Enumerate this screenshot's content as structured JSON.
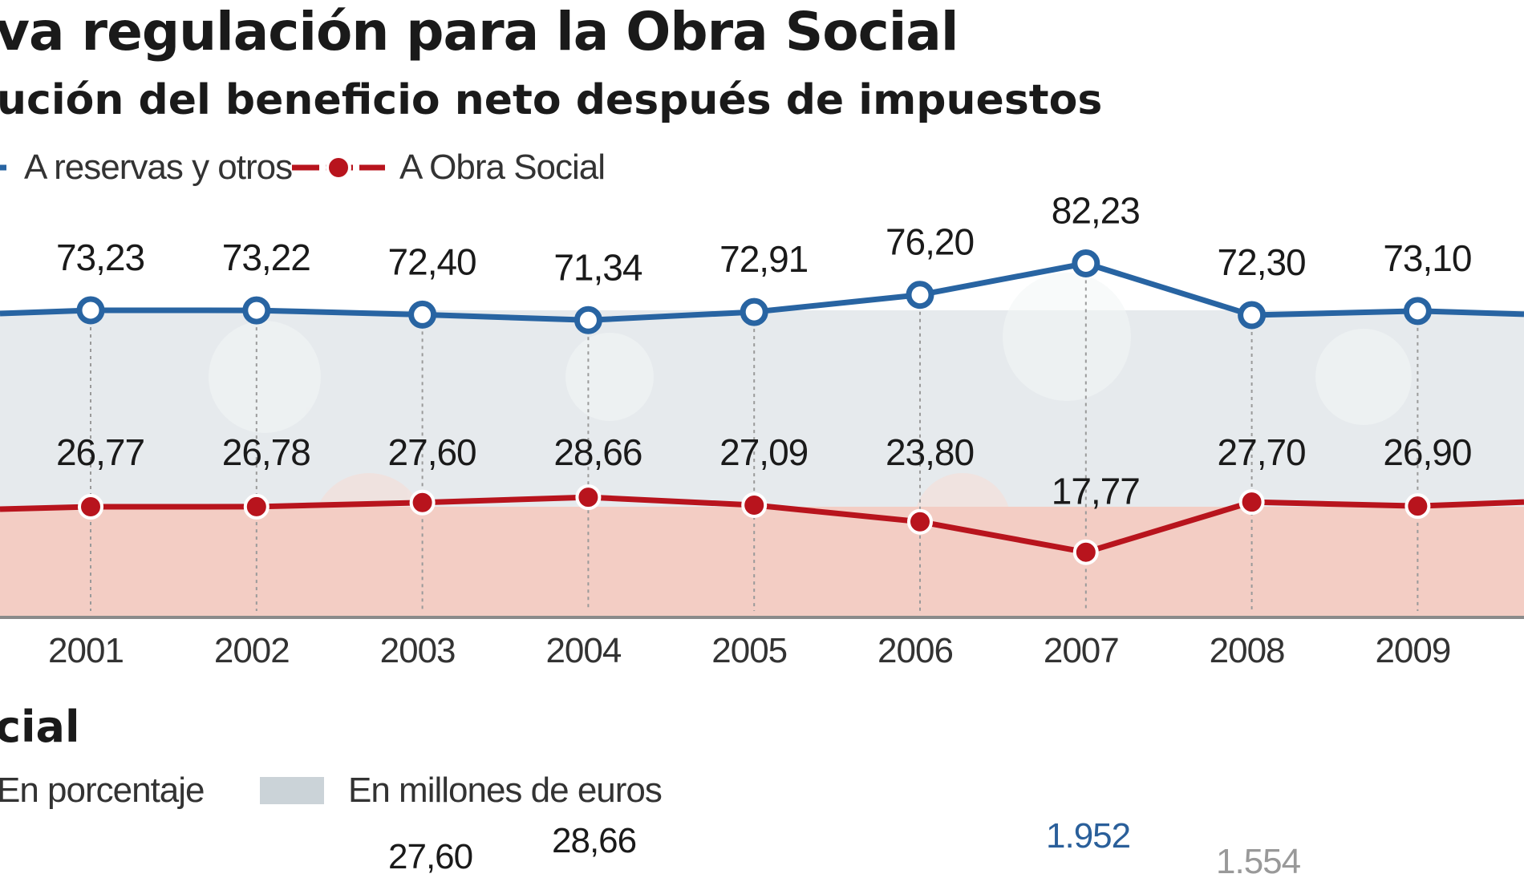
{
  "header": {
    "title": "va regulación para la Obra Social",
    "subtitle": "ución del beneficio neto después de impuestos"
  },
  "legend": {
    "reserves": "A reservas y otros",
    "obra": "A Obra Social"
  },
  "colors": {
    "reserves_line": "#2864a2",
    "obra_line": "#b8141d",
    "reserves_band": "#e6eaed",
    "obra_band": "#f3cdc4"
  },
  "chart_data": {
    "type": "line",
    "title": "ución del beneficio neto después de impuestos",
    "categories": [
      "2001",
      "2002",
      "2003",
      "2004",
      "2005",
      "2006",
      "2007",
      "2008",
      "2009"
    ],
    "series": [
      {
        "name": "A reservas y otros",
        "values": [
          73.23,
          73.22,
          72.4,
          71.34,
          72.91,
          76.2,
          82.23,
          72.3,
          73.1
        ],
        "labels": [
          "73,23",
          "73,22",
          "72,40",
          "71,34",
          "72,91",
          "76,20",
          "82,23",
          "72,30",
          "73,10"
        ]
      },
      {
        "name": "A Obra Social",
        "values": [
          26.77,
          26.78,
          27.6,
          28.66,
          27.09,
          23.8,
          17.77,
          27.7,
          26.9
        ],
        "labels": [
          "26,77",
          "26,78",
          "27,60",
          "28,66",
          "27,09",
          "23,80",
          "17,77",
          "27,70",
          "26,90"
        ]
      }
    ],
    "xlabel": "",
    "ylabel": ""
  },
  "section2": {
    "title": "cial",
    "legend_pct": "En porcentaje",
    "legend_eur": "En millones de euros",
    "pct_2003": "27,60",
    "pct_2004": "28,66",
    "eur_2007": "1.952",
    "eur_2008": "1.554"
  }
}
